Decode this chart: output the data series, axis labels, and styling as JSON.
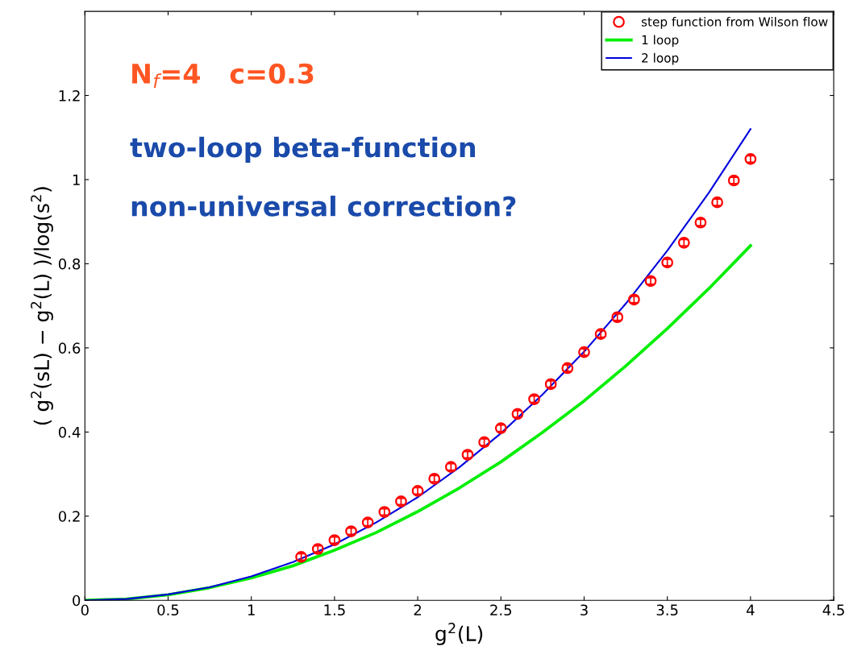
{
  "chart_data": {
    "type": "line",
    "xlabel": "g$^{2}$(L)",
    "ylabel": "( g$^{2}$(sL) − g$^{2}$(L) )/log(s$^{2}$)",
    "xlim": [
      0,
      4.5
    ],
    "ylim": [
      0,
      1.4
    ],
    "xticks": [
      0,
      0.5,
      1,
      1.5,
      2,
      2.5,
      3,
      3.5,
      4,
      4.5
    ],
    "yticks": [
      0,
      0.2,
      0.4,
      0.6,
      0.8,
      1,
      1.2
    ],
    "grid": false,
    "legend": "top right",
    "annotations": [
      "N$_{f}$=4   c=0.3",
      "two-loop beta-function",
      "non-universal correction?"
    ],
    "series": [
      {
        "name": "step function from Wilson flow",
        "type": "scatter",
        "marker": "circle",
        "color": "#ff0000",
        "x": [
          1.3,
          1.4,
          1.5,
          1.6,
          1.7,
          1.8,
          1.9,
          2.0,
          2.1,
          2.2,
          2.3,
          2.4,
          2.5,
          2.6,
          2.7,
          2.8,
          2.9,
          3.0,
          3.1,
          3.2,
          3.3,
          3.4,
          3.5,
          3.6,
          3.7,
          3.8,
          3.9,
          4.0
        ],
        "values": [
          0.103,
          0.122,
          0.143,
          0.164,
          0.185,
          0.21,
          0.235,
          0.26,
          0.289,
          0.317,
          0.346,
          0.376,
          0.409,
          0.443,
          0.478,
          0.514,
          0.552,
          0.59,
          0.633,
          0.673,
          0.715,
          0.759,
          0.803,
          0.85,
          0.898,
          0.946,
          0.998,
          1.049
        ],
        "errors": [
          0.008,
          0.008,
          0.008,
          0.008,
          0.008,
          0.008,
          0.008,
          0.008,
          0.008,
          0.008,
          0.008,
          0.008,
          0.008,
          0.008,
          0.008,
          0.008,
          0.008,
          0.008,
          0.008,
          0.008,
          0.008,
          0.008,
          0.008,
          0.008,
          0.008,
          0.008,
          0.008,
          0.008
        ]
      },
      {
        "name": "1 loop",
        "marker": "none",
        "color": "#00ee00",
        "x": [
          0,
          0.25,
          0.5,
          0.75,
          1,
          1.25,
          1.5,
          1.75,
          2,
          2.25,
          2.5,
          2.75,
          3,
          3.25,
          3.5,
          3.75,
          4
        ],
        "values": [
          0,
          0.003,
          0.013,
          0.03,
          0.053,
          0.082,
          0.119,
          0.161,
          0.211,
          0.267,
          0.329,
          0.399,
          0.474,
          0.557,
          0.646,
          0.741,
          0.843
        ]
      },
      {
        "name": "2 loop",
        "marker": "none",
        "color": "#0000dd",
        "x": [
          0,
          0.25,
          0.5,
          0.75,
          1,
          1.25,
          1.5,
          1.75,
          2,
          2.25,
          2.5,
          2.75,
          3,
          3.25,
          3.5,
          3.75,
          4
        ],
        "values": [
          0,
          0.003,
          0.014,
          0.031,
          0.057,
          0.091,
          0.133,
          0.185,
          0.245,
          0.316,
          0.397,
          0.489,
          0.591,
          0.705,
          0.831,
          0.969,
          1.12
        ]
      }
    ]
  }
}
